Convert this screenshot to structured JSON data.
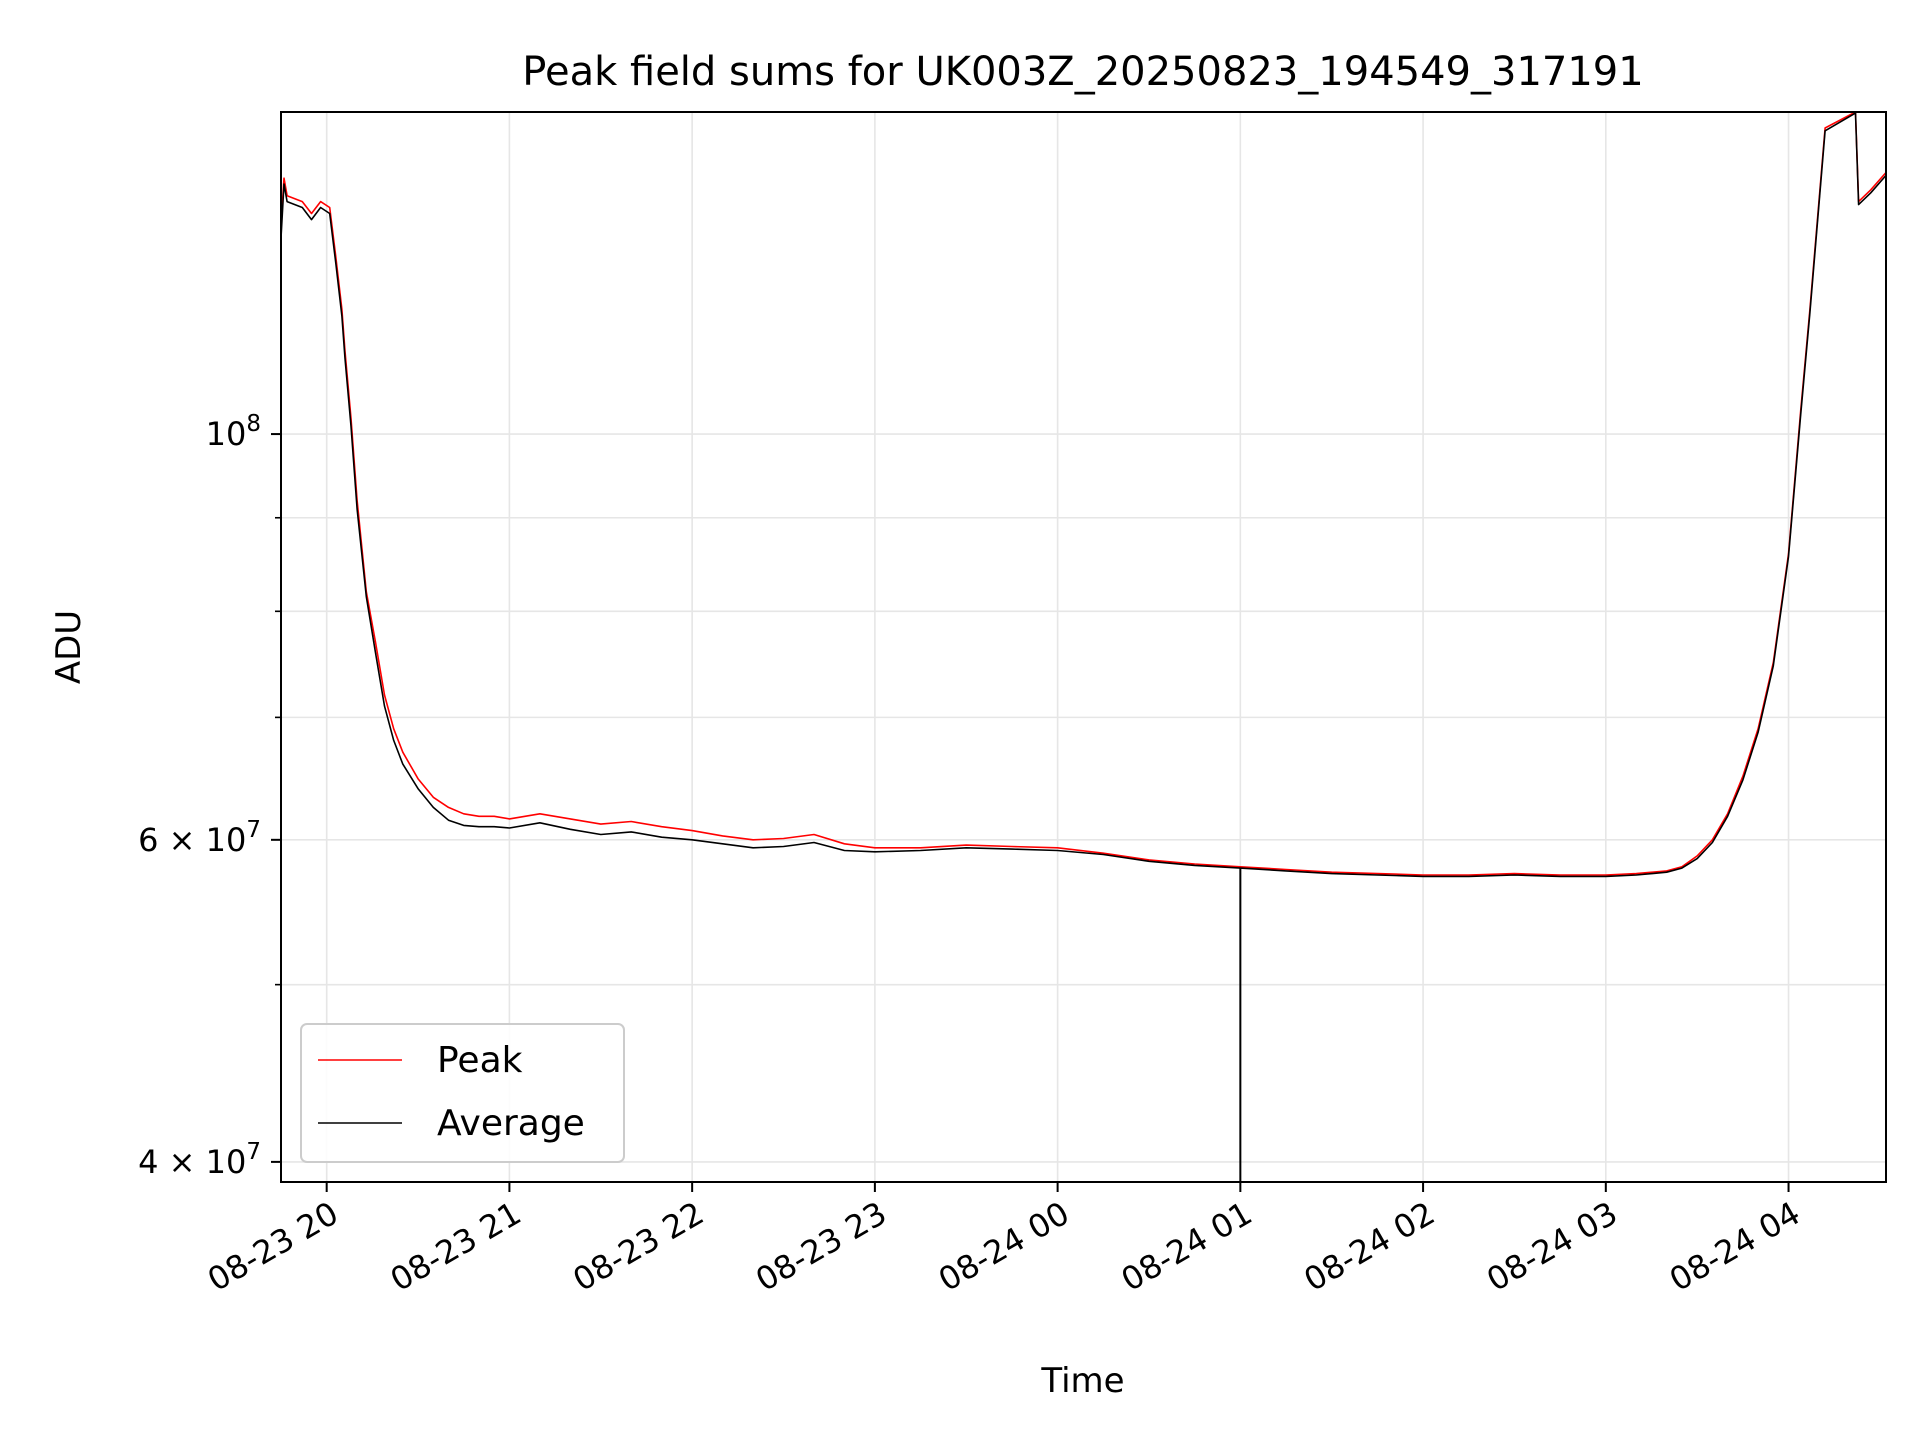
{
  "chart_data": {
    "type": "line",
    "title": "Peak field sums for UK003Z_20250823_194549_317191",
    "xlabel": "Time",
    "ylabel": "ADU",
    "yscale": "log",
    "ylim": [
      39000000,
      150000000
    ],
    "xlim": [
      "2025-08-23 19:45",
      "2025-08-24 04:32"
    ],
    "grid": true,
    "legend_position": "lower-left",
    "x_ticks": [
      {
        "t": "2025-08-23 20:00",
        "label": "08-23 20"
      },
      {
        "t": "2025-08-23 21:00",
        "label": "08-23 21"
      },
      {
        "t": "2025-08-23 22:00",
        "label": "08-23 22"
      },
      {
        "t": "2025-08-23 23:00",
        "label": "08-23 23"
      },
      {
        "t": "2025-08-24 00:00",
        "label": "08-24 00"
      },
      {
        "t": "2025-08-24 01:00",
        "label": "08-24 01"
      },
      {
        "t": "2025-08-24 02:00",
        "label": "08-24 02"
      },
      {
        "t": "2025-08-24 03:00",
        "label": "08-24 03"
      },
      {
        "t": "2025-08-24 04:00",
        "label": "08-24 04"
      }
    ],
    "y_ticks": [
      {
        "v": 40000000,
        "base": "4 × 10",
        "exp": "7"
      },
      {
        "v": 60000000,
        "base": "6 × 10",
        "exp": "7"
      },
      {
        "v": 100000000,
        "base": "10",
        "exp": "8"
      }
    ],
    "y_minor_ticks": [
      50000000,
      70000000,
      80000000,
      90000000
    ],
    "series": [
      {
        "name": "Peak",
        "color": "#ff0000",
        "x": [
          "2025-08-23 19:45",
          "2025-08-23 19:46",
          "2025-08-23 19:47",
          "2025-08-23 19:52",
          "2025-08-23 19:55",
          "2025-08-23 19:58",
          "2025-08-23 20:01",
          "2025-08-23 20:03",
          "2025-08-23 20:05",
          "2025-08-23 20:06",
          "2025-08-23 20:08",
          "2025-08-23 20:10",
          "2025-08-23 20:13",
          "2025-08-23 20:16",
          "2025-08-23 20:19",
          "2025-08-23 20:22",
          "2025-08-23 20:25",
          "2025-08-23 20:30",
          "2025-08-23 20:35",
          "2025-08-23 20:40",
          "2025-08-23 20:45",
          "2025-08-23 20:50",
          "2025-08-23 20:55",
          "2025-08-23 21:00",
          "2025-08-23 21:10",
          "2025-08-23 21:20",
          "2025-08-23 21:30",
          "2025-08-23 21:40",
          "2025-08-23 21:50",
          "2025-08-23 22:00",
          "2025-08-23 22:10",
          "2025-08-23 22:20",
          "2025-08-23 22:30",
          "2025-08-23 22:40",
          "2025-08-23 22:50",
          "2025-08-23 23:00",
          "2025-08-23 23:15",
          "2025-08-23 23:30",
          "2025-08-23 23:45",
          "2025-08-24 00:00",
          "2025-08-24 00:15",
          "2025-08-24 00:30",
          "2025-08-24 00:45",
          "2025-08-24 01:00",
          "2025-08-24 01:15",
          "2025-08-24 01:30",
          "2025-08-24 01:45",
          "2025-08-24 02:00",
          "2025-08-24 02:15",
          "2025-08-24 02:30",
          "2025-08-24 02:45",
          "2025-08-24 03:00",
          "2025-08-24 03:10",
          "2025-08-24 03:20",
          "2025-08-24 03:25",
          "2025-08-24 03:30",
          "2025-08-24 03:35",
          "2025-08-24 03:40",
          "2025-08-24 03:45",
          "2025-08-24 03:50",
          "2025-08-24 03:55",
          "2025-08-24 04:00",
          "2025-08-24 04:04",
          "2025-08-24 04:07",
          "2025-08-24 04:12",
          "2025-08-24 04:22",
          "2025-08-24 04:23",
          "2025-08-24 04:27",
          "2025-08-24 04:32"
        ],
        "y": [
          130000000,
          138000000,
          135000000,
          134000000,
          132000000,
          134000000,
          133000000,
          125000000,
          117000000,
          111000000,
          102000000,
          92000000,
          82000000,
          77000000,
          72000000,
          69000000,
          67000000,
          64800000,
          63300000,
          62500000,
          62000000,
          61800000,
          61800000,
          61600000,
          62000000,
          61600000,
          61200000,
          61400000,
          61000000,
          60700000,
          60300000,
          60000000,
          60100000,
          60400000,
          59700000,
          59400000,
          59400000,
          59600000,
          59500000,
          59400000,
          59000000,
          58500000,
          58200000,
          58000000,
          57800000,
          57600000,
          57500000,
          57400000,
          57400000,
          57500000,
          57400000,
          57400000,
          57500000,
          57700000,
          58000000,
          58800000,
          60000000,
          62000000,
          65000000,
          69000000,
          75000000,
          86000000,
          103000000,
          117000000,
          147000000,
          150000000,
          134000000,
          136000000,
          139000000
        ]
      },
      {
        "name": "Average",
        "color": "#000000",
        "x": [
          "2025-08-23 19:45",
          "2025-08-23 19:46",
          "2025-08-23 19:47",
          "2025-08-23 19:52",
          "2025-08-23 19:55",
          "2025-08-23 19:58",
          "2025-08-23 20:01",
          "2025-08-23 20:03",
          "2025-08-23 20:05",
          "2025-08-23 20:06",
          "2025-08-23 20:08",
          "2025-08-23 20:10",
          "2025-08-23 20:13",
          "2025-08-23 20:16",
          "2025-08-23 20:19",
          "2025-08-23 20:22",
          "2025-08-23 20:25",
          "2025-08-23 20:30",
          "2025-08-23 20:35",
          "2025-08-23 20:40",
          "2025-08-23 20:45",
          "2025-08-23 20:50",
          "2025-08-23 20:55",
          "2025-08-23 21:00",
          "2025-08-23 21:10",
          "2025-08-23 21:20",
          "2025-08-23 21:30",
          "2025-08-23 21:40",
          "2025-08-23 21:50",
          "2025-08-23 22:00",
          "2025-08-23 22:10",
          "2025-08-23 22:20",
          "2025-08-23 22:30",
          "2025-08-23 22:40",
          "2025-08-23 22:50",
          "2025-08-23 23:00",
          "2025-08-23 23:15",
          "2025-08-23 23:30",
          "2025-08-23 23:45",
          "2025-08-24 00:00",
          "2025-08-24 00:15",
          "2025-08-24 00:30",
          "2025-08-24 00:45",
          "2025-08-24 01:00",
          "2025-08-24 01:15",
          "2025-08-24 01:30",
          "2025-08-24 01:45",
          "2025-08-24 02:00",
          "2025-08-24 02:15",
          "2025-08-24 02:30",
          "2025-08-24 02:45",
          "2025-08-24 03:00",
          "2025-08-24 03:10",
          "2025-08-24 03:20",
          "2025-08-24 03:25",
          "2025-08-24 03:30",
          "2025-08-24 03:35",
          "2025-08-24 03:40",
          "2025-08-24 03:45",
          "2025-08-24 03:50",
          "2025-08-24 03:55",
          "2025-08-24 04:00",
          "2025-08-24 04:04",
          "2025-08-24 04:07",
          "2025-08-24 04:12",
          "2025-08-24 04:22",
          "2025-08-24 04:23",
          "2025-08-24 04:27",
          "2025-08-24 04:32"
        ],
        "y": [
          128000000,
          137000000,
          134000000,
          133000000,
          131000000,
          133000000,
          132000000,
          124000000,
          116000000,
          110000000,
          101000000,
          91000000,
          81500000,
          76000000,
          71000000,
          68000000,
          66000000,
          64000000,
          62500000,
          61500000,
          61100000,
          61000000,
          61000000,
          60900000,
          61300000,
          60800000,
          60400000,
          60600000,
          60200000,
          60000000,
          59700000,
          59400000,
          59500000,
          59800000,
          59200000,
          59100000,
          59200000,
          59400000,
          59300000,
          59200000,
          58900000,
          58400000,
          58100000,
          57900000,
          57700000,
          57500000,
          57400000,
          57300000,
          57300000,
          57400000,
          57300000,
          57300000,
          57400000,
          57600000,
          57900000,
          58600000,
          59800000,
          61800000,
          64700000,
          68700000,
          74700000,
          85700000,
          102500000,
          116500000,
          146500000,
          149800000,
          133500000,
          135500000,
          138500000
        ]
      }
    ],
    "spikes": [
      {
        "series": "Average",
        "t": "2025-08-24 01:00",
        "from": 57900000,
        "to": 38800000
      }
    ]
  }
}
